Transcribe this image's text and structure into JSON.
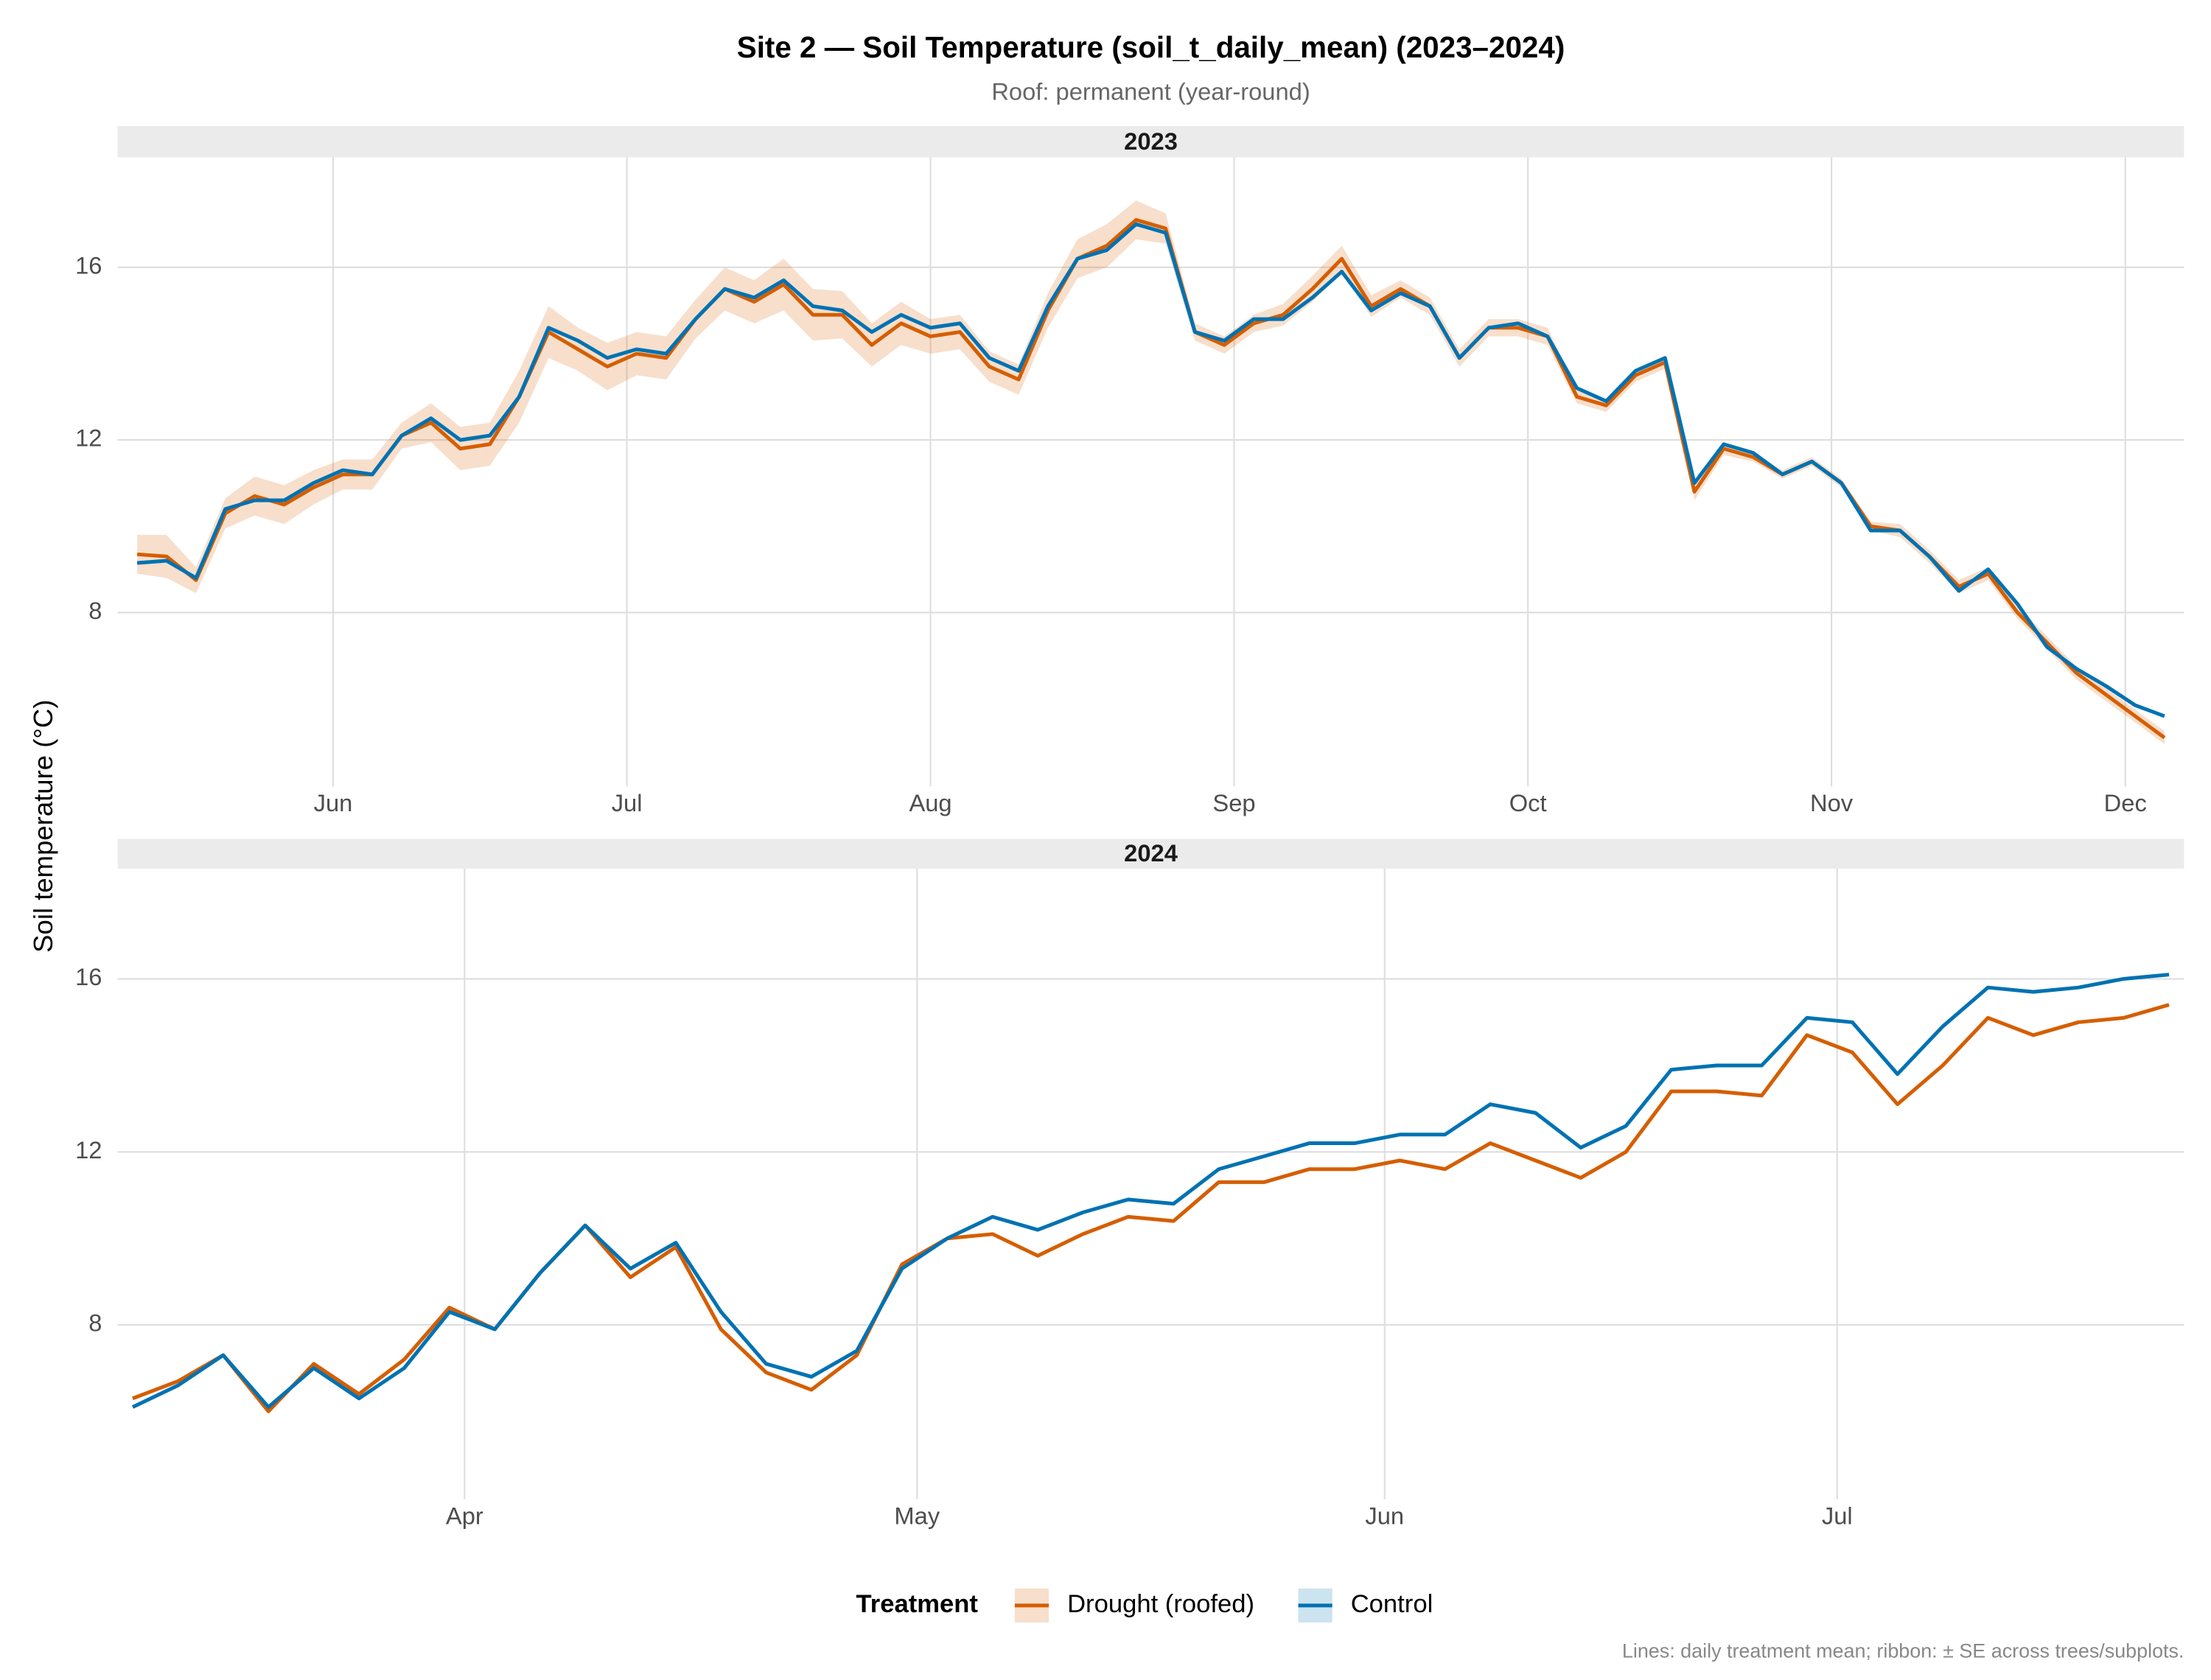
{
  "title": "Site 2 — Soil Temperature (soil_t_daily_mean) (2023–2024)",
  "subtitle": "Roof: permanent (year-round)",
  "ylabel": "Soil temperature (°C)",
  "legend_title": "Treatment",
  "caption": "Lines: daily treatment mean; ribbon: ± SE across trees/subplots.",
  "chart_data": [
    {
      "type": "line",
      "title": "2023",
      "grid": true,
      "x": [
        "2023-05-12",
        "2023-05-15",
        "2023-05-18",
        "2023-05-21",
        "2023-05-24",
        "2023-05-27",
        "2023-05-30",
        "2023-06-02",
        "2023-06-05",
        "2023-06-08",
        "2023-06-11",
        "2023-06-14",
        "2023-06-17",
        "2023-06-20",
        "2023-06-23",
        "2023-06-26",
        "2023-06-29",
        "2023-07-02",
        "2023-07-05",
        "2023-07-08",
        "2023-07-11",
        "2023-07-14",
        "2023-07-17",
        "2023-07-20",
        "2023-07-23",
        "2023-07-26",
        "2023-07-29",
        "2023-08-01",
        "2023-08-04",
        "2023-08-07",
        "2023-08-10",
        "2023-08-13",
        "2023-08-16",
        "2023-08-19",
        "2023-08-22",
        "2023-08-25",
        "2023-08-28",
        "2023-08-31",
        "2023-09-03",
        "2023-09-06",
        "2023-09-09",
        "2023-09-12",
        "2023-09-15",
        "2023-09-18",
        "2023-09-21",
        "2023-09-24",
        "2023-09-27",
        "2023-09-30",
        "2023-10-03",
        "2023-10-06",
        "2023-10-09",
        "2023-10-12",
        "2023-10-15",
        "2023-10-18",
        "2023-10-21",
        "2023-10-24",
        "2023-10-27",
        "2023-10-30",
        "2023-11-02",
        "2023-11-05",
        "2023-11-08",
        "2023-11-11",
        "2023-11-14",
        "2023-11-17",
        "2023-11-20",
        "2023-11-23",
        "2023-11-26",
        "2023-11-29",
        "2023-12-02",
        "2023-12-05"
      ],
      "series": [
        {
          "name": "Drought (roofed)",
          "color": "#D55E00",
          "values": [
            9.35,
            9.3,
            8.75,
            10.3,
            10.7,
            10.5,
            10.9,
            11.2,
            11.2,
            12.1,
            12.4,
            11.8,
            11.9,
            13.0,
            14.5,
            14.1,
            13.7,
            14.0,
            13.9,
            14.8,
            15.5,
            15.2,
            15.6,
            14.9,
            14.9,
            14.2,
            14.7,
            14.4,
            14.5,
            13.7,
            13.4,
            15.0,
            16.2,
            16.5,
            17.1,
            16.9,
            14.5,
            14.2,
            14.7,
            14.9,
            15.5,
            16.2,
            15.1,
            15.5,
            15.1,
            13.9,
            14.6,
            14.6,
            14.4,
            13.0,
            12.8,
            13.5,
            13.8,
            10.8,
            11.8,
            11.6,
            11.2,
            11.5,
            11.0,
            10.0,
            9.9,
            9.3,
            8.6,
            8.9,
            8.0,
            7.3,
            6.6,
            6.1,
            5.6,
            5.1
          ],
          "se": [
            0.45,
            0.5,
            0.3,
            0.35,
            0.45,
            0.45,
            0.4,
            0.35,
            0.35,
            0.3,
            0.45,
            0.5,
            0.5,
            0.6,
            0.6,
            0.5,
            0.55,
            0.5,
            0.5,
            0.45,
            0.5,
            0.5,
            0.6,
            0.6,
            0.55,
            0.5,
            0.5,
            0.4,
            0.4,
            0.35,
            0.35,
            0.4,
            0.45,
            0.5,
            0.45,
            0.35,
            0.2,
            0.2,
            0.2,
            0.25,
            0.3,
            0.3,
            0.25,
            0.2,
            0.2,
            0.2,
            0.2,
            0.2,
            0.2,
            0.15,
            0.15,
            0.15,
            0.15,
            0.2,
            0.15,
            0.1,
            0.1,
            0.1,
            0.1,
            0.1,
            0.15,
            0.15,
            0.15,
            0.15,
            0.15,
            0.15,
            0.15,
            0.15,
            0.15,
            0.15
          ]
        },
        {
          "name": "Control",
          "color": "#0072B2",
          "values": [
            9.15,
            9.2,
            8.8,
            10.4,
            10.6,
            10.6,
            11.0,
            11.3,
            11.2,
            12.1,
            12.5,
            12.0,
            12.1,
            13.0,
            14.6,
            14.3,
            13.9,
            14.1,
            14.0,
            14.8,
            15.5,
            15.3,
            15.7,
            15.1,
            15.0,
            14.5,
            14.9,
            14.6,
            14.7,
            13.9,
            13.6,
            15.1,
            16.2,
            16.4,
            17.0,
            16.8,
            14.5,
            14.3,
            14.8,
            14.8,
            15.3,
            15.9,
            15.0,
            15.4,
            15.1,
            13.9,
            14.6,
            14.7,
            14.4,
            13.2,
            12.9,
            13.6,
            13.9,
            11.0,
            11.9,
            11.7,
            11.2,
            11.5,
            11.0,
            9.9,
            9.9,
            9.3,
            8.5,
            9.0,
            8.2,
            7.2,
            6.7,
            6.3,
            5.85,
            5.6
          ]
        }
      ],
      "xlim": [
        "2023-05-10",
        "2023-12-07"
      ],
      "xticks": [
        {
          "value": "2023-06-01",
          "label": "Jun"
        },
        {
          "value": "2023-07-01",
          "label": "Jul"
        },
        {
          "value": "2023-08-01",
          "label": "Aug"
        },
        {
          "value": "2023-09-01",
          "label": "Sep"
        },
        {
          "value": "2023-10-01",
          "label": "Oct"
        },
        {
          "value": "2023-11-01",
          "label": "Nov"
        },
        {
          "value": "2023-12-01",
          "label": "Dec"
        }
      ],
      "ylim": [
        3.97,
        18.55
      ],
      "yticks": [
        8,
        12,
        16
      ]
    },
    {
      "type": "line",
      "title": "2024",
      "grid": true,
      "x": [
        "2024-03-10",
        "2024-03-13",
        "2024-03-16",
        "2024-03-19",
        "2024-03-22",
        "2024-03-25",
        "2024-03-28",
        "2024-03-31",
        "2024-04-03",
        "2024-04-06",
        "2024-04-09",
        "2024-04-12",
        "2024-04-15",
        "2024-04-18",
        "2024-04-21",
        "2024-04-24",
        "2024-04-27",
        "2024-04-30",
        "2024-05-03",
        "2024-05-06",
        "2024-05-09",
        "2024-05-12",
        "2024-05-15",
        "2024-05-18",
        "2024-05-21",
        "2024-05-24",
        "2024-05-27",
        "2024-05-30",
        "2024-06-02",
        "2024-06-05",
        "2024-06-08",
        "2024-06-11",
        "2024-06-14",
        "2024-06-17",
        "2024-06-20",
        "2024-06-23",
        "2024-06-26",
        "2024-06-29",
        "2024-07-02",
        "2024-07-05",
        "2024-07-08",
        "2024-07-11",
        "2024-07-14",
        "2024-07-17",
        "2024-07-20",
        "2024-07-23"
      ],
      "series": [
        {
          "color": "#D55E00",
          "values": [
            6.3,
            6.7,
            7.3,
            6.0,
            7.1,
            6.4,
            7.2,
            8.4,
            7.9,
            9.2,
            10.3,
            9.1,
            9.8,
            7.9,
            6.9,
            6.5,
            7.3,
            9.4,
            10.0,
            10.1,
            9.6,
            10.1,
            10.5,
            10.4,
            11.3,
            11.3,
            11.6,
            11.6,
            11.8,
            11.6,
            12.2,
            11.8,
            11.4,
            12.0,
            13.4,
            13.4,
            13.3,
            14.7,
            14.3,
            13.1,
            14.0,
            15.1,
            14.7,
            15.0,
            15.1,
            15.4
          ]
        },
        {
          "color": "#0072B2",
          "values": [
            6.1,
            6.6,
            7.3,
            6.1,
            7.0,
            6.3,
            7.0,
            8.3,
            7.9,
            9.2,
            10.3,
            9.3,
            9.9,
            8.3,
            7.1,
            6.8,
            7.4,
            9.3,
            10.0,
            10.5,
            10.2,
            10.6,
            10.9,
            10.8,
            11.6,
            11.9,
            12.2,
            12.2,
            12.4,
            12.4,
            13.1,
            12.9,
            12.1,
            12.6,
            13.9,
            14.0,
            14.0,
            15.1,
            15.0,
            13.8,
            14.9,
            15.8,
            15.7,
            15.8,
            16.0,
            16.1
          ]
        }
      ],
      "xlim": [
        "2024-03-09",
        "2024-07-24"
      ],
      "xticks": [
        {
          "value": "2024-04-01",
          "label": "Apr"
        },
        {
          "value": "2024-05-01",
          "label": "May"
        },
        {
          "value": "2024-06-01",
          "label": "Jun"
        },
        {
          "value": "2024-07-01",
          "label": "Jul"
        }
      ],
      "ylim": [
        3.97,
        18.55
      ],
      "yticks": [
        8,
        12,
        16
      ]
    }
  ]
}
